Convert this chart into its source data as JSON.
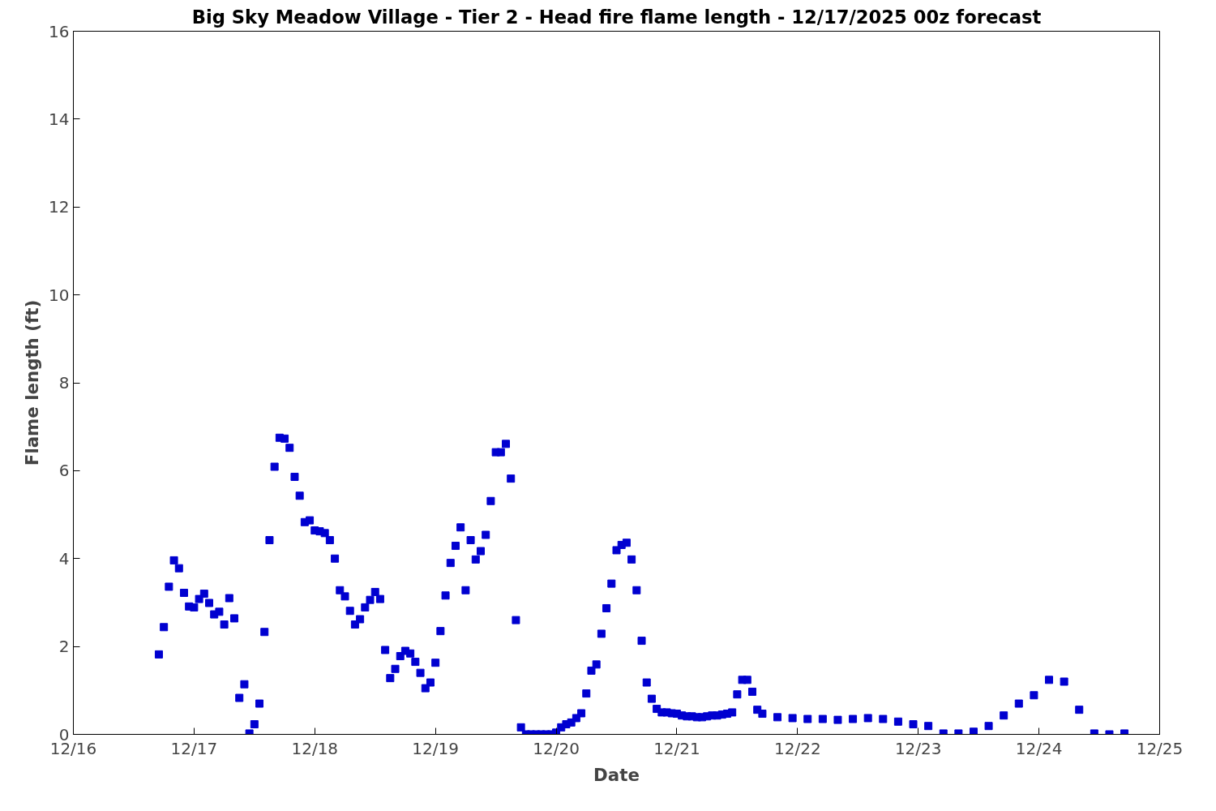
{
  "chart_data": {
    "type": "scatter",
    "title": "Big Sky Meadow Village - Tier 2 - Head fire flame length - 12/17/2025 00z forecast",
    "xlabel": "Date",
    "ylabel": "Flame length (ft)",
    "marker": "square",
    "grid": false,
    "xlim": [
      "2025-12-16",
      "2025-12-25"
    ],
    "xticks": [
      {
        "value": "2025-12-16",
        "label": "12/16"
      },
      {
        "value": "2025-12-17",
        "label": "12/17"
      },
      {
        "value": "2025-12-18",
        "label": "12/18"
      },
      {
        "value": "2025-12-19",
        "label": "12/19"
      },
      {
        "value": "2025-12-20",
        "label": "12/20"
      },
      {
        "value": "2025-12-21",
        "label": "12/21"
      },
      {
        "value": "2025-12-22",
        "label": "12/22"
      },
      {
        "value": "2025-12-23",
        "label": "12/23"
      },
      {
        "value": "2025-12-24",
        "label": "12/24"
      },
      {
        "value": "2025-12-25",
        "label": "12/25"
      }
    ],
    "ylim": [
      0,
      16
    ],
    "yticks": [
      0,
      2,
      4,
      6,
      8,
      10,
      12,
      14,
      16
    ],
    "series": [
      {
        "color": "#0000d0",
        "x": [
          "2025-12-16T17:00",
          "2025-12-16T18:00",
          "2025-12-16T19:00",
          "2025-12-16T20:00",
          "2025-12-16T21:00",
          "2025-12-16T22:00",
          "2025-12-16T23:00",
          "2025-12-17T00:00",
          "2025-12-17T01:00",
          "2025-12-17T02:00",
          "2025-12-17T03:00",
          "2025-12-17T04:00",
          "2025-12-17T05:00",
          "2025-12-17T06:00",
          "2025-12-17T07:00",
          "2025-12-17T08:00",
          "2025-12-17T09:00",
          "2025-12-17T10:00",
          "2025-12-17T11:00",
          "2025-12-17T12:00",
          "2025-12-17T13:00",
          "2025-12-17T14:00",
          "2025-12-17T15:00",
          "2025-12-17T16:00",
          "2025-12-17T17:00",
          "2025-12-17T18:00",
          "2025-12-17T19:00",
          "2025-12-17T20:00",
          "2025-12-17T21:00",
          "2025-12-17T22:00",
          "2025-12-17T23:00",
          "2025-12-18T00:00",
          "2025-12-18T01:00",
          "2025-12-18T02:00",
          "2025-12-18T03:00",
          "2025-12-18T04:00",
          "2025-12-18T05:00",
          "2025-12-18T06:00",
          "2025-12-18T07:00",
          "2025-12-18T08:00",
          "2025-12-18T09:00",
          "2025-12-18T10:00",
          "2025-12-18T11:00",
          "2025-12-18T12:00",
          "2025-12-18T13:00",
          "2025-12-18T14:00",
          "2025-12-18T15:00",
          "2025-12-18T16:00",
          "2025-12-18T17:00",
          "2025-12-18T18:00",
          "2025-12-18T19:00",
          "2025-12-18T20:00",
          "2025-12-18T21:00",
          "2025-12-18T22:00",
          "2025-12-18T23:00",
          "2025-12-19T00:00",
          "2025-12-19T01:00",
          "2025-12-19T02:00",
          "2025-12-19T03:00",
          "2025-12-19T04:00",
          "2025-12-19T05:00",
          "2025-12-19T06:00",
          "2025-12-19T07:00",
          "2025-12-19T08:00",
          "2025-12-19T09:00",
          "2025-12-19T10:00",
          "2025-12-19T11:00",
          "2025-12-19T12:00",
          "2025-12-19T13:00",
          "2025-12-19T14:00",
          "2025-12-19T15:00",
          "2025-12-19T16:00",
          "2025-12-19T17:00",
          "2025-12-19T18:00",
          "2025-12-19T19:00",
          "2025-12-19T20:00",
          "2025-12-19T21:00",
          "2025-12-19T22:00",
          "2025-12-19T23:00",
          "2025-12-20T00:00",
          "2025-12-20T01:00",
          "2025-12-20T02:00",
          "2025-12-20T03:00",
          "2025-12-20T04:00",
          "2025-12-20T05:00",
          "2025-12-20T06:00",
          "2025-12-20T07:00",
          "2025-12-20T08:00",
          "2025-12-20T09:00",
          "2025-12-20T10:00",
          "2025-12-20T11:00",
          "2025-12-20T12:00",
          "2025-12-20T13:00",
          "2025-12-20T14:00",
          "2025-12-20T15:00",
          "2025-12-20T16:00",
          "2025-12-20T17:00",
          "2025-12-20T18:00",
          "2025-12-20T19:00",
          "2025-12-20T20:00",
          "2025-12-20T21:00",
          "2025-12-20T22:00",
          "2025-12-20T23:00",
          "2025-12-21T00:00",
          "2025-12-21T01:00",
          "2025-12-21T02:00",
          "2025-12-21T03:00",
          "2025-12-21T04:00",
          "2025-12-21T05:00",
          "2025-12-21T06:00",
          "2025-12-21T07:00",
          "2025-12-21T08:00",
          "2025-12-21T09:00",
          "2025-12-21T10:00",
          "2025-12-21T11:00",
          "2025-12-21T12:00",
          "2025-12-21T13:00",
          "2025-12-21T14:00",
          "2025-12-21T15:00",
          "2025-12-21T16:00",
          "2025-12-21T17:00",
          "2025-12-21T20:00",
          "2025-12-21T23:00",
          "2025-12-22T02:00",
          "2025-12-22T05:00",
          "2025-12-22T08:00",
          "2025-12-22T11:00",
          "2025-12-22T14:00",
          "2025-12-22T17:00",
          "2025-12-22T20:00",
          "2025-12-22T23:00",
          "2025-12-23T02:00",
          "2025-12-23T05:00",
          "2025-12-23T08:00",
          "2025-12-23T11:00",
          "2025-12-23T14:00",
          "2025-12-23T17:00",
          "2025-12-23T20:00",
          "2025-12-23T23:00",
          "2025-12-24T02:00",
          "2025-12-24T05:00",
          "2025-12-24T08:00",
          "2025-12-24T11:00",
          "2025-12-24T14:00",
          "2025-12-24T17:00"
        ],
        "values": [
          1.82,
          2.44,
          3.36,
          3.96,
          3.78,
          3.22,
          2.91,
          2.89,
          3.08,
          3.2,
          2.99,
          2.73,
          2.79,
          2.5,
          3.1,
          2.64,
          0.83,
          1.14,
          0.02,
          0.23,
          0.7,
          2.33,
          4.42,
          6.09,
          6.75,
          6.73,
          6.52,
          5.86,
          5.43,
          4.83,
          4.87,
          4.64,
          4.62,
          4.58,
          4.42,
          4.0,
          3.28,
          3.14,
          2.81,
          2.5,
          2.62,
          2.89,
          3.06,
          3.24,
          3.08,
          1.92,
          1.28,
          1.49,
          1.78,
          1.9,
          1.84,
          1.65,
          1.4,
          1.05,
          1.18,
          1.63,
          2.35,
          3.16,
          3.9,
          4.29,
          4.71,
          3.28,
          4.42,
          3.98,
          4.17,
          4.54,
          5.31,
          6.42,
          6.42,
          6.61,
          5.82,
          2.6,
          0.16,
          0,
          0,
          0,
          0,
          0,
          0,
          0.04,
          0.16,
          0.23,
          0.27,
          0.37,
          0.48,
          0.93,
          1.45,
          1.59,
          2.29,
          2.87,
          3.43,
          4.19,
          4.31,
          4.36,
          3.98,
          3.28,
          2.13,
          1.18,
          0.81,
          0.58,
          0.5,
          0.5,
          0.48,
          0.47,
          0.43,
          0.41,
          0.41,
          0.39,
          0.39,
          0.41,
          0.43,
          0.43,
          0.45,
          0.47,
          0.5,
          0.91,
          1.24,
          1.24,
          0.97,
          0.56,
          0.47,
          0.39,
          0.37,
          0.35,
          0.35,
          0.33,
          0.35,
          0.37,
          0.35,
          0.29,
          0.23,
          0.19,
          0.02,
          0.02,
          0.06,
          0.19,
          0.43,
          0.7,
          0.89,
          1.24,
          1.2,
          0.56,
          0.02,
          0,
          0.02
        ]
      }
    ]
  }
}
